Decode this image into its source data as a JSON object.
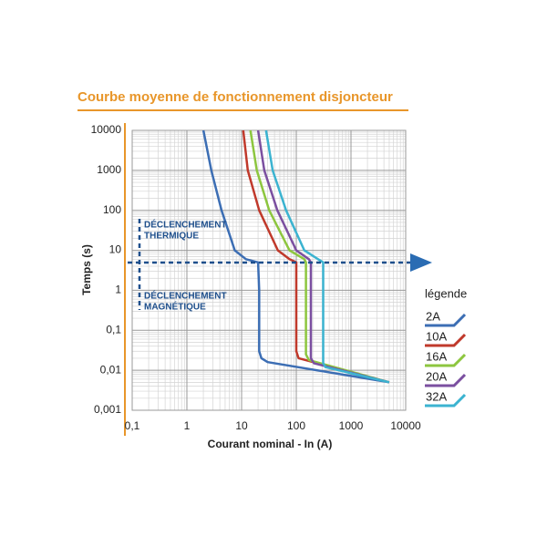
{
  "chart_data": {
    "type": "line",
    "title": "Courbe moyenne de fonctionnement disjoncteur",
    "x_label": "Courant nominal - In (A)",
    "y_label": "Temps (s)",
    "x_scale": "log",
    "y_scale": "log",
    "xlim": [
      0.1,
      10000
    ],
    "ylim": [
      0.001,
      10000
    ],
    "xticks": [
      {
        "value": 0.1,
        "label": "0,1"
      },
      1,
      10,
      100,
      1000,
      10000
    ],
    "yticks": [
      {
        "value": 0.001,
        "label": "0,001"
      },
      {
        "value": 0.01,
        "label": "0,01"
      },
      {
        "value": 0.1,
        "label": "0,1"
      },
      1,
      10,
      100,
      1000,
      10000
    ],
    "grid": true,
    "minor_grid": true,
    "annotations": [
      [
        "DÉCLENCHEMENT",
        "THERMIQUE"
      ],
      [
        "DÉCLENCHEMENT",
        "MAGNÉTIQUE"
      ]
    ],
    "legend_title": "légende",
    "legend_position": "right",
    "series": [
      {
        "name": "2A",
        "color": "#3c6eb4",
        "x": [
          2,
          2.8,
          4.3,
          7.5,
          12,
          20,
          21,
          21,
          23,
          30,
          5000
        ],
        "values": [
          10000,
          1000,
          100,
          10,
          6,
          5,
          1,
          0.03,
          0.02,
          0.016,
          0.005
        ]
      },
      {
        "name": "10A",
        "color": "#c0392b",
        "x": [
          10.7,
          13,
          21,
          46,
          75,
          100,
          100,
          100,
          110,
          5000
        ],
        "values": [
          10000,
          1000,
          100,
          10,
          6,
          5,
          1,
          0.03,
          0.02,
          0.005
        ]
      },
      {
        "name": "16A",
        "color": "#8dc63f",
        "x": [
          14.5,
          19,
          32,
          75,
          140,
          150,
          150,
          150,
          170,
          5000
        ],
        "values": [
          10000,
          1000,
          100,
          10,
          6,
          5,
          1,
          0.025,
          0.018,
          0.005
        ]
      },
      {
        "name": "20A",
        "color": "#7b4fa0",
        "x": [
          20,
          26,
          45,
          100,
          170,
          185,
          185,
          185,
          210,
          5000
        ],
        "values": [
          10000,
          1000,
          100,
          10,
          6,
          5,
          1,
          0.02,
          0.015,
          0.005
        ]
      },
      {
        "name": "32A",
        "color": "#3bb3d0",
        "x": [
          28,
          37,
          65,
          140,
          250,
          310,
          310,
          310,
          340,
          5000
        ],
        "values": [
          10000,
          1000,
          100,
          10,
          6,
          5,
          1,
          0.015,
          0.012,
          0.005
        ]
      }
    ]
  }
}
